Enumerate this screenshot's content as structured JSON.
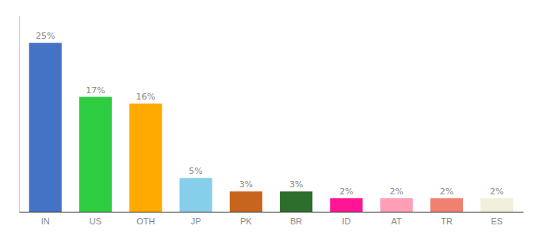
{
  "chart_data": {
    "type": "bar",
    "categories": [
      "IN",
      "US",
      "OTH",
      "JP",
      "PK",
      "BR",
      "ID",
      "AT",
      "TR",
      "ES"
    ],
    "values": [
      25,
      17,
      16,
      5,
      3,
      3,
      2,
      2,
      2,
      2
    ],
    "value_labels": [
      "25%",
      "17%",
      "16%",
      "5%",
      "3%",
      "3%",
      "2%",
      "2%",
      "2%",
      "2%"
    ],
    "colors": [
      "#4472c4",
      "#2ecc40",
      "#ffaa00",
      "#87ceeb",
      "#c8651d",
      "#2d6e2d",
      "#ff1493",
      "#ff9eb5",
      "#f08070",
      "#f0f0dc"
    ],
    "ylim": [
      0,
      29
    ],
    "data_labels": true,
    "tick_labels": "x",
    "grid": false
  }
}
